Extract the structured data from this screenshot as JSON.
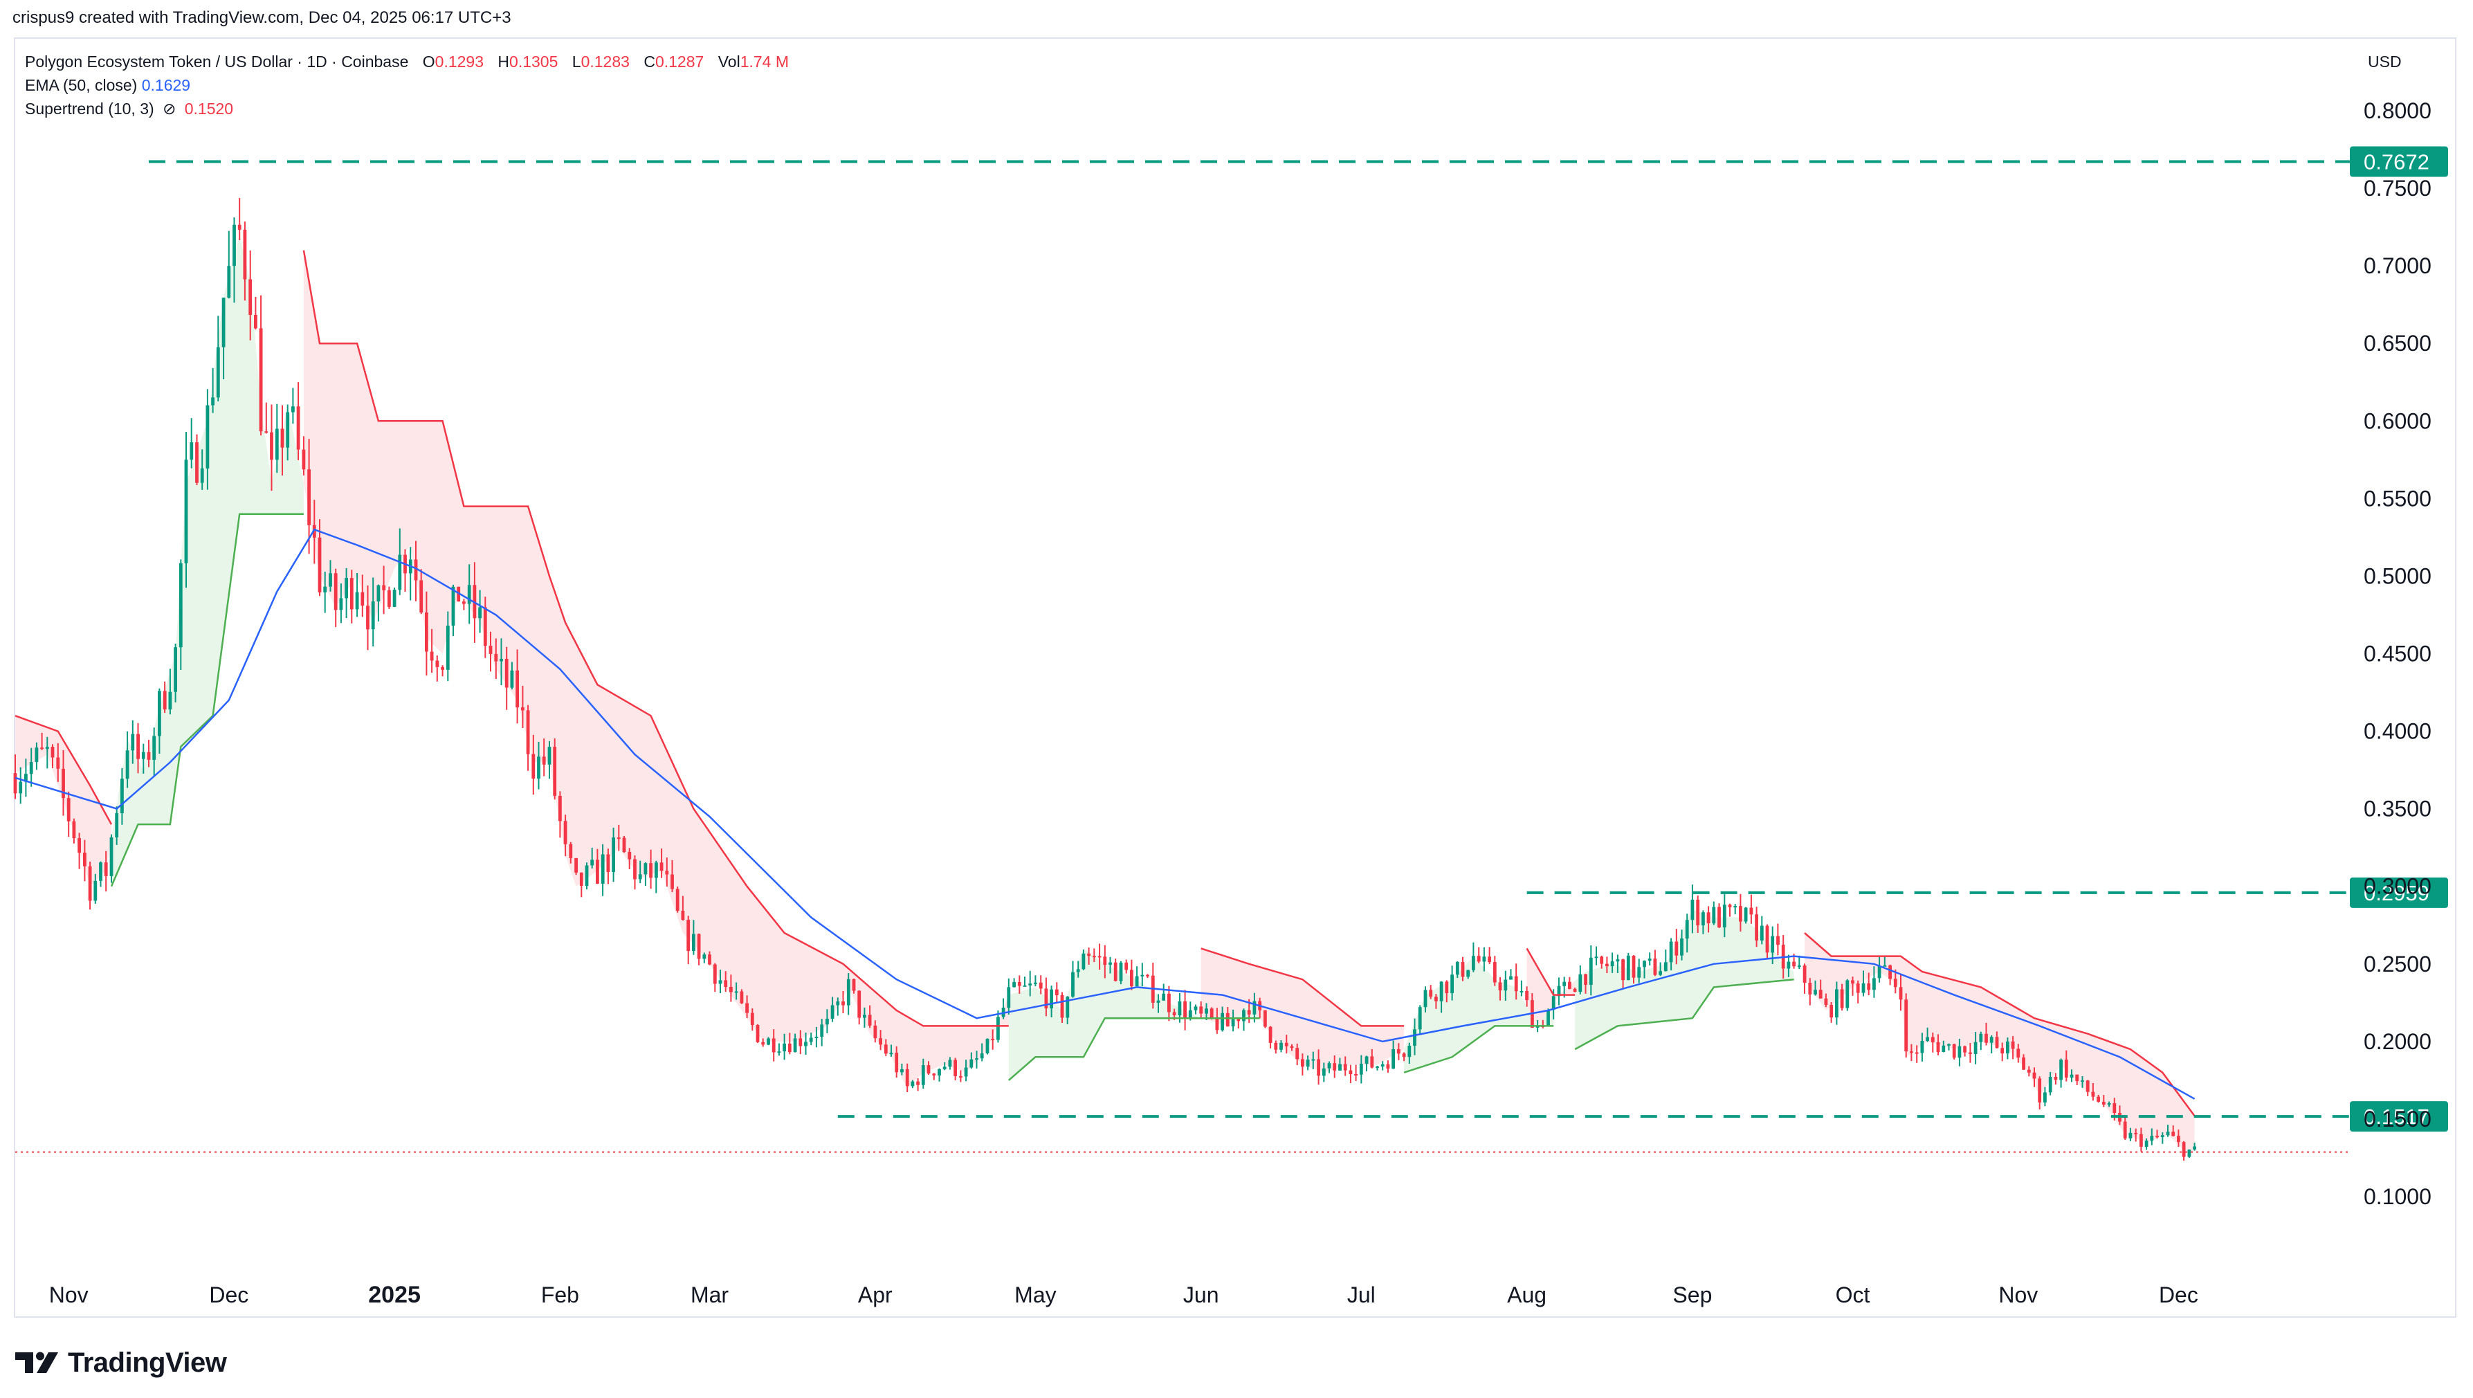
{
  "header": {
    "credit": "crispus9 created with TradingView.com, Dec 04, 2025 06:17 UTC+3"
  },
  "legend": {
    "symbol": "Polygon Ecosystem Token / US Dollar · 1D · Coinbase",
    "o_label": "O",
    "o": "0.1293",
    "h_label": "H",
    "h": "0.1305",
    "l_label": "L",
    "l": "0.1283",
    "c_label": "C",
    "c": "0.1287",
    "vol_label": "Vol",
    "vol": "1.74 M",
    "ema_label": "EMA (50, close)",
    "ema": "0.1629",
    "st_label": "Supertrend (10, 3)",
    "st_icon": "eye-off-icon",
    "st": "0.1520"
  },
  "footer": {
    "logo_text": "TradingView",
    "logo_icon": "tradingview-logo-icon"
  },
  "colors": {
    "up": "#089981",
    "down": "#f23645",
    "ema": "#2962ff",
    "st_up": "#4caf50",
    "st_down": "#f23645",
    "st_up_fill": "#e8f5e9",
    "st_down_fill": "#fde7e9",
    "level": "#089981",
    "last": "#f23645",
    "grid": "#ffffff",
    "axis_text": "#131722"
  },
  "chart_data": {
    "type": "candlestick",
    "currency": "USD",
    "ylim": [
      0.03,
      0.83
    ],
    "y_ticks": [
      "0.8000",
      "0.7500",
      "0.7000",
      "0.6500",
      "0.6000",
      "0.5500",
      "0.5000",
      "0.4500",
      "0.4000",
      "0.3500",
      "0.3000",
      "0.2500",
      "0.2000",
      "0.1500",
      "0.1000"
    ],
    "y_tick_values": [
      0.8,
      0.75,
      0.7,
      0.65,
      0.6,
      0.55,
      0.5,
      0.45,
      0.4,
      0.35,
      0.3,
      0.25,
      0.2,
      0.15,
      0.1
    ],
    "x_ticks": [
      {
        "label": "Nov",
        "date": "2024-11-01"
      },
      {
        "label": "Dec",
        "date": "2024-12-01"
      },
      {
        "label": "2025",
        "date": "2025-01-01",
        "bold": true
      },
      {
        "label": "Feb",
        "date": "2025-02-01"
      },
      {
        "label": "Mar",
        "date": "2025-03-01"
      },
      {
        "label": "Apr",
        "date": "2025-04-01"
      },
      {
        "label": "May",
        "date": "2025-05-01"
      },
      {
        "label": "Jun",
        "date": "2025-06-01"
      },
      {
        "label": "Jul",
        "date": "2025-07-01"
      },
      {
        "label": "Aug",
        "date": "2025-08-01"
      },
      {
        "label": "Sep",
        "date": "2025-09-01"
      },
      {
        "label": "Oct",
        "date": "2025-10-01"
      },
      {
        "label": "Nov",
        "date": "2025-11-01"
      },
      {
        "label": "Dec",
        "date": "2025-12-01"
      }
    ],
    "x_range": [
      "2024-10-22",
      "2025-12-31"
    ],
    "close_path": [
      [
        "2024-10-22",
        0.373
      ],
      [
        "2024-10-28",
        0.385
      ],
      [
        "2024-11-02",
        0.335
      ],
      [
        "2024-11-05",
        0.3
      ],
      [
        "2024-11-08",
        0.31
      ],
      [
        "2024-11-12",
        0.395
      ],
      [
        "2024-11-15",
        0.375
      ],
      [
        "2024-11-18",
        0.415
      ],
      [
        "2024-11-21",
        0.45
      ],
      [
        "2024-11-23",
        0.56
      ],
      [
        "2024-11-27",
        0.6
      ],
      [
        "2024-11-30",
        0.68
      ],
      [
        "2024-12-03",
        0.72
      ],
      [
        "2024-12-05",
        0.69
      ],
      [
        "2024-12-07",
        0.61
      ],
      [
        "2024-12-09",
        0.56
      ],
      [
        "2024-12-12",
        0.61
      ],
      [
        "2024-12-15",
        0.56
      ],
      [
        "2024-12-18",
        0.5
      ],
      [
        "2024-12-21",
        0.48
      ],
      [
        "2024-12-25",
        0.5
      ],
      [
        "2024-12-28",
        0.47
      ],
      [
        "2025-01-01",
        0.505
      ],
      [
        "2025-01-04",
        0.52
      ],
      [
        "2025-01-07",
        0.46
      ],
      [
        "2025-01-10",
        0.45
      ],
      [
        "2025-01-13",
        0.49
      ],
      [
        "2025-01-17",
        0.47
      ],
      [
        "2025-01-20",
        0.44
      ],
      [
        "2025-01-24",
        0.42
      ],
      [
        "2025-01-27",
        0.38
      ],
      [
        "2025-01-30",
        0.38
      ],
      [
        "2025-02-02",
        0.32
      ],
      [
        "2025-02-04",
        0.3
      ],
      [
        "2025-02-08",
        0.31
      ],
      [
        "2025-02-12",
        0.325
      ],
      [
        "2025-02-16",
        0.305
      ],
      [
        "2025-02-20",
        0.31
      ],
      [
        "2025-02-24",
        0.27
      ],
      [
        "2025-02-28",
        0.255
      ],
      [
        "2025-03-03",
        0.24
      ],
      [
        "2025-03-07",
        0.22
      ],
      [
        "2025-03-11",
        0.2
      ],
      [
        "2025-03-17",
        0.2
      ],
      [
        "2025-03-23",
        0.21
      ],
      [
        "2025-03-27",
        0.235
      ],
      [
        "2025-03-31",
        0.205
      ],
      [
        "2025-04-04",
        0.19
      ],
      [
        "2025-04-07",
        0.17
      ],
      [
        "2025-04-10",
        0.18
      ],
      [
        "2025-04-14",
        0.185
      ],
      [
        "2025-04-18",
        0.18
      ],
      [
        "2025-04-22",
        0.195
      ],
      [
        "2025-04-26",
        0.23
      ],
      [
        "2025-05-01",
        0.235
      ],
      [
        "2025-05-06",
        0.22
      ],
      [
        "2025-05-10",
        0.26
      ],
      [
        "2025-05-14",
        0.25
      ],
      [
        "2025-05-20",
        0.24
      ],
      [
        "2025-05-26",
        0.225
      ],
      [
        "2025-06-01",
        0.215
      ],
      [
        "2025-06-06",
        0.21
      ],
      [
        "2025-06-10",
        0.225
      ],
      [
        "2025-06-15",
        0.2
      ],
      [
        "2025-06-20",
        0.185
      ],
      [
        "2025-06-24",
        0.18
      ],
      [
        "2025-06-29",
        0.185
      ],
      [
        "2025-07-04",
        0.185
      ],
      [
        "2025-07-09",
        0.195
      ],
      [
        "2025-07-13",
        0.23
      ],
      [
        "2025-07-18",
        0.24
      ],
      [
        "2025-07-22",
        0.255
      ],
      [
        "2025-07-26",
        0.24
      ],
      [
        "2025-07-30",
        0.235
      ],
      [
        "2025-08-03",
        0.21
      ],
      [
        "2025-08-07",
        0.23
      ],
      [
        "2025-08-12",
        0.245
      ],
      [
        "2025-08-17",
        0.25
      ],
      [
        "2025-08-22",
        0.245
      ],
      [
        "2025-08-27",
        0.25
      ],
      [
        "2025-09-01",
        0.285
      ],
      [
        "2025-09-05",
        0.28
      ],
      [
        "2025-09-10",
        0.28
      ],
      [
        "2025-09-14",
        0.27
      ],
      [
        "2025-09-18",
        0.25
      ],
      [
        "2025-09-22",
        0.24
      ],
      [
        "2025-09-26",
        0.22
      ],
      [
        "2025-10-01",
        0.235
      ],
      [
        "2025-10-06",
        0.245
      ],
      [
        "2025-10-10",
        0.235
      ],
      [
        "2025-10-11",
        0.19
      ],
      [
        "2025-10-15",
        0.2
      ],
      [
        "2025-10-20",
        0.195
      ],
      [
        "2025-10-25",
        0.2
      ],
      [
        "2025-10-30",
        0.195
      ],
      [
        "2025-11-03",
        0.18
      ],
      [
        "2025-11-05",
        0.165
      ],
      [
        "2025-11-09",
        0.185
      ],
      [
        "2025-11-13",
        0.17
      ],
      [
        "2025-11-17",
        0.16
      ],
      [
        "2025-11-21",
        0.14
      ],
      [
        "2025-11-25",
        0.135
      ],
      [
        "2025-11-29",
        0.14
      ],
      [
        "2025-12-02",
        0.13
      ],
      [
        "2025-12-04",
        0.129
      ]
    ],
    "ema_path": [
      [
        "2024-10-22",
        0.37
      ],
      [
        "2024-11-10",
        0.35
      ],
      [
        "2024-11-20",
        0.38
      ],
      [
        "2024-12-01",
        0.42
      ],
      [
        "2024-12-10",
        0.49
      ],
      [
        "2024-12-17",
        0.53
      ],
      [
        "2024-12-25",
        0.52
      ],
      [
        "2025-01-05",
        0.505
      ],
      [
        "2025-01-20",
        0.475
      ],
      [
        "2025-02-01",
        0.44
      ],
      [
        "2025-02-15",
        0.385
      ],
      [
        "2025-03-01",
        0.345
      ],
      [
        "2025-03-20",
        0.28
      ],
      [
        "2025-04-05",
        0.24
      ],
      [
        "2025-04-20",
        0.215
      ],
      [
        "2025-05-05",
        0.225
      ],
      [
        "2025-05-20",
        0.235
      ],
      [
        "2025-06-05",
        0.23
      ],
      [
        "2025-06-20",
        0.215
      ],
      [
        "2025-07-05",
        0.2
      ],
      [
        "2025-07-20",
        0.21
      ],
      [
        "2025-08-05",
        0.22
      ],
      [
        "2025-08-20",
        0.235
      ],
      [
        "2025-09-05",
        0.25
      ],
      [
        "2025-09-20",
        0.255
      ],
      [
        "2025-10-05",
        0.25
      ],
      [
        "2025-10-20",
        0.23
      ],
      [
        "2025-11-05",
        0.21
      ],
      [
        "2025-11-20",
        0.19
      ],
      [
        "2025-12-04",
        0.163
      ]
    ],
    "supertrend": [
      {
        "dir": "down",
        "points": [
          [
            "2024-10-22",
            0.41
          ],
          [
            "2024-10-30",
            0.4
          ],
          [
            "2024-11-05",
            0.365
          ],
          [
            "2024-11-09",
            0.34
          ]
        ]
      },
      {
        "dir": "up",
        "points": [
          [
            "2024-11-09",
            0.3
          ],
          [
            "2024-11-14",
            0.34
          ],
          [
            "2024-11-20",
            0.34
          ],
          [
            "2024-11-22",
            0.39
          ],
          [
            "2024-11-28",
            0.41
          ],
          [
            "2024-12-03",
            0.54
          ],
          [
            "2024-12-15",
            0.54
          ]
        ]
      },
      {
        "dir": "down",
        "points": [
          [
            "2024-12-15",
            0.71
          ],
          [
            "2024-12-18",
            0.65
          ],
          [
            "2024-12-25",
            0.65
          ],
          [
            "2024-12-29",
            0.6
          ],
          [
            "2025-01-10",
            0.6
          ],
          [
            "2025-01-14",
            0.545
          ],
          [
            "2025-01-26",
            0.545
          ],
          [
            "2025-01-30",
            0.5
          ],
          [
            "2025-02-02",
            0.47
          ],
          [
            "2025-02-08",
            0.43
          ],
          [
            "2025-02-18",
            0.41
          ],
          [
            "2025-02-26",
            0.35
          ],
          [
            "2025-03-08",
            0.3
          ],
          [
            "2025-03-15",
            0.27
          ],
          [
            "2025-03-26",
            0.25
          ],
          [
            "2025-04-05",
            0.22
          ],
          [
            "2025-04-10",
            0.21
          ],
          [
            "2025-04-26",
            0.21
          ]
        ]
      },
      {
        "dir": "up",
        "points": [
          [
            "2025-04-26",
            0.175
          ],
          [
            "2025-05-01",
            0.19
          ],
          [
            "2025-05-10",
            0.19
          ],
          [
            "2025-05-14",
            0.215
          ],
          [
            "2025-06-12",
            0.215
          ]
        ]
      },
      {
        "dir": "down",
        "points": [
          [
            "2025-06-01",
            0.26
          ],
          [
            "2025-06-10",
            0.25
          ],
          [
            "2025-06-20",
            0.24
          ],
          [
            "2025-07-01",
            0.21
          ],
          [
            "2025-07-09",
            0.21
          ]
        ]
      },
      {
        "dir": "up",
        "points": [
          [
            "2025-07-09",
            0.18
          ],
          [
            "2025-07-18",
            0.19
          ],
          [
            "2025-07-26",
            0.21
          ],
          [
            "2025-08-06",
            0.21
          ]
        ]
      },
      {
        "dir": "down",
        "points": [
          [
            "2025-08-01",
            0.26
          ],
          [
            "2025-08-06",
            0.23
          ],
          [
            "2025-08-10",
            0.23
          ]
        ]
      },
      {
        "dir": "up",
        "points": [
          [
            "2025-08-10",
            0.195
          ],
          [
            "2025-08-18",
            0.21
          ],
          [
            "2025-09-01",
            0.215
          ],
          [
            "2025-09-05",
            0.235
          ],
          [
            "2025-09-20",
            0.24
          ]
        ]
      },
      {
        "dir": "down",
        "points": [
          [
            "2025-09-22",
            0.27
          ],
          [
            "2025-09-27",
            0.255
          ],
          [
            "2025-10-10",
            0.255
          ],
          [
            "2025-10-14",
            0.245
          ],
          [
            "2025-10-25",
            0.235
          ],
          [
            "2025-11-04",
            0.215
          ],
          [
            "2025-11-14",
            0.205
          ],
          [
            "2025-11-22",
            0.195
          ],
          [
            "2025-11-28",
            0.18
          ],
          [
            "2025-12-04",
            0.152
          ]
        ]
      }
    ],
    "levels": [
      {
        "value": 0.7672,
        "label": "0.7672",
        "from": "2024-11-16"
      },
      {
        "value": 0.2959,
        "label": "0.2959",
        "from": "2025-08-01"
      },
      {
        "value": 0.1517,
        "label": "0.1517",
        "from": "2025-03-25"
      }
    ],
    "last_price": 0.1287
  }
}
